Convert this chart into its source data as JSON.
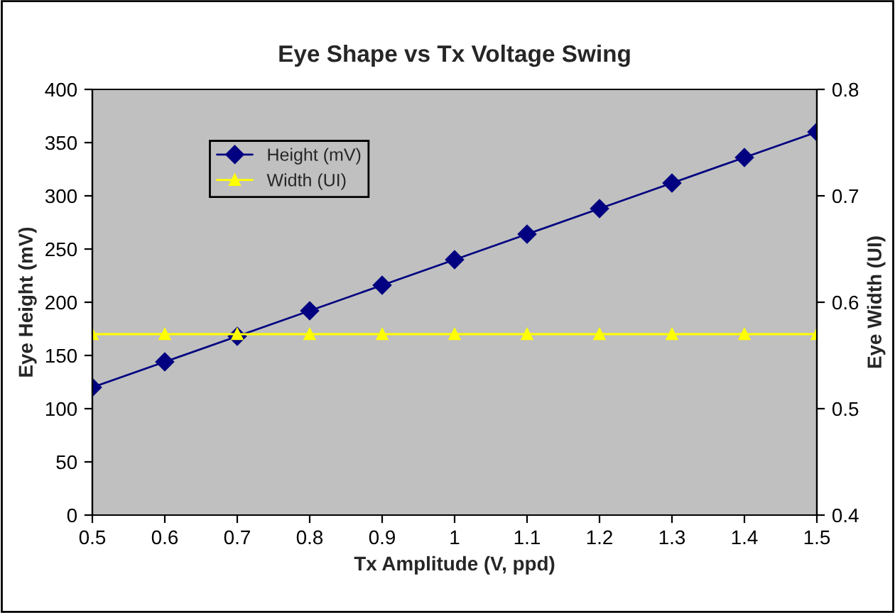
{
  "chart_data": {
    "type": "line",
    "title": "Eye Shape vs Tx Voltage Swing",
    "xlabel": "Tx Amplitude (V, ppd)",
    "ylabel": "Eye Height (mV)",
    "y2label": "Eye Width (UI)",
    "x": [
      0.5,
      0.6,
      0.7,
      0.8,
      0.9,
      1.0,
      1.1,
      1.2,
      1.3,
      1.4,
      1.5
    ],
    "series": [
      {
        "name": "Height (mV)",
        "color": "#000080",
        "marker": "diamond",
        "values": [
          120,
          144,
          168,
          192,
          216,
          240,
          264,
          288,
          312,
          336,
          360
        ]
      },
      {
        "name": "Width (UI)",
        "color": "#ffff00",
        "marker": "triangle",
        "axis": "y2",
        "values": [
          0.57,
          0.57,
          0.57,
          0.57,
          0.57,
          0.57,
          0.57,
          0.57,
          0.57,
          0.57,
          0.57
        ]
      }
    ],
    "xlim": [
      0.5,
      1.5
    ],
    "xticks": [
      0.5,
      0.6,
      0.7,
      0.8,
      0.9,
      1,
      1.1,
      1.2,
      1.3,
      1.4,
      1.5
    ],
    "ylim": [
      0,
      400
    ],
    "yticks": [
      0,
      50,
      100,
      150,
      200,
      250,
      300,
      350,
      400
    ],
    "y2lim": [
      0.4,
      0.8
    ],
    "y2ticks": [
      0.4,
      0.5,
      0.6,
      0.7,
      0.8
    ],
    "legend": "top left",
    "grid": false
  }
}
